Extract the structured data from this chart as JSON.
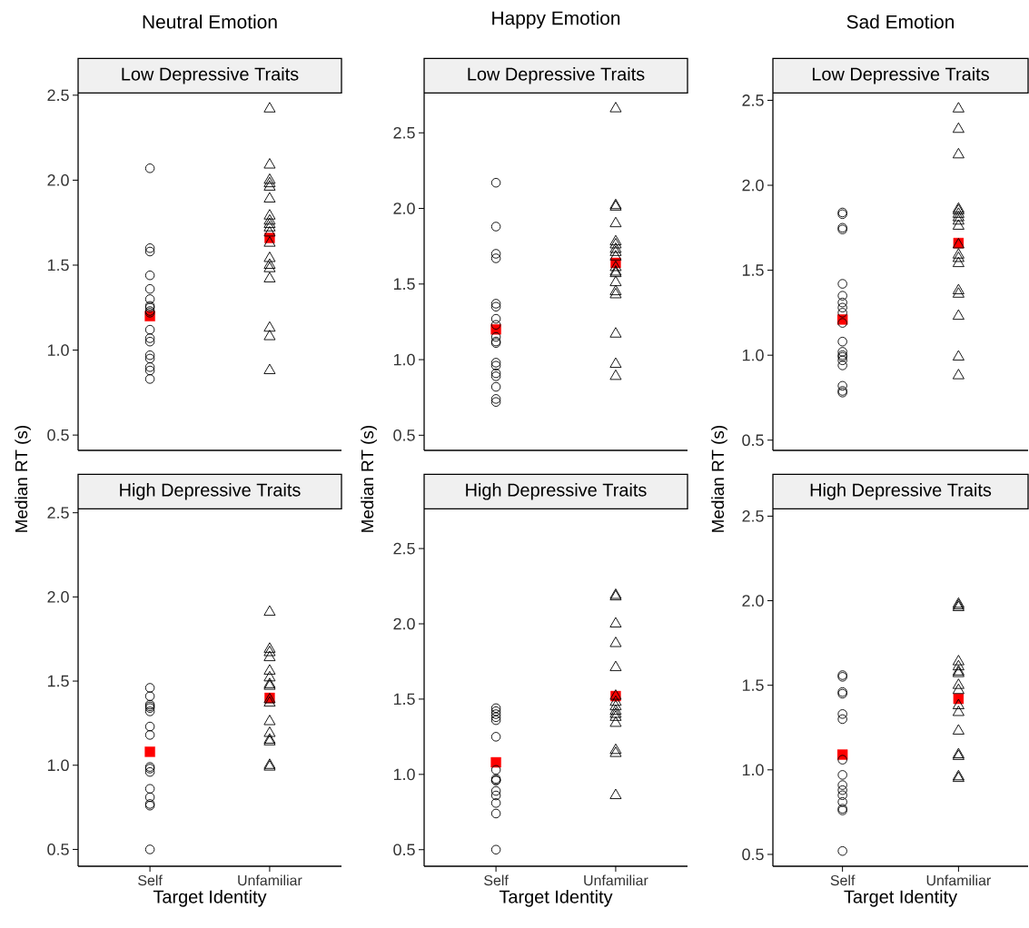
{
  "chart_data": [
    {
      "type": "scatter",
      "title": "Neutral Emotion",
      "subtitle": "Low Depressive Traits",
      "categories": [
        "Self",
        "Unfamiliar"
      ],
      "ylim": [
        0.41,
        2.51
      ],
      "yticks": [
        {
          "value": 0.5,
          "label": "0.5"
        },
        {
          "value": 1.0,
          "label": "1.0"
        },
        {
          "value": 1.5,
          "label": "1.5"
        },
        {
          "value": 2.0,
          "label": "2.0"
        },
        {
          "value": 2.5,
          "label": "2.5"
        }
      ],
      "tick_labels": "y",
      "series": [
        {
          "color": "#000000",
          "marker": "circle",
          "x": [
            "Self",
            "Self",
            "Self",
            "Self",
            "Self",
            "Self",
            "Self",
            "Self",
            "Self",
            "Self",
            "Self",
            "Self",
            "Self",
            "Self",
            "Self",
            "Self",
            "Self",
            "Self"
          ],
          "values": [
            2.07,
            1.6,
            1.58,
            1.44,
            1.36,
            1.3,
            1.26,
            1.25,
            1.23,
            1.22,
            1.12,
            1.07,
            1.05,
            0.97,
            0.95,
            0.9,
            0.88,
            0.83
          ]
        },
        {
          "color": "#000000",
          "marker": "triangle",
          "x": [
            "Unfamiliar",
            "Unfamiliar",
            "Unfamiliar",
            "Unfamiliar",
            "Unfamiliar",
            "Unfamiliar",
            "Unfamiliar",
            "Unfamiliar",
            "Unfamiliar",
            "Unfamiliar",
            "Unfamiliar",
            "Unfamiliar",
            "Unfamiliar",
            "Unfamiliar",
            "Unfamiliar",
            "Unfamiliar",
            "Unfamiliar",
            "Unfamiliar",
            "Unfamiliar"
          ],
          "values": [
            2.42,
            2.09,
            2.0,
            1.98,
            1.96,
            1.89,
            1.79,
            1.76,
            1.74,
            1.72,
            1.69,
            1.63,
            1.54,
            1.5,
            1.48,
            1.42,
            1.13,
            1.08,
            0.88
          ]
        },
        {
          "color": "#ff0000",
          "marker": "square",
          "x": [
            "Self",
            "Unfamiliar"
          ],
          "values": [
            1.2,
            1.66
          ]
        }
      ]
    },
    {
      "type": "scatter",
      "title": "Happy Emotion",
      "subtitle": "Low Depressive Traits",
      "categories": [
        "Self",
        "Unfamiliar"
      ],
      "ylim": [
        0.4,
        2.76
      ],
      "yticks": [
        {
          "value": 0.5,
          "label": "0.5"
        },
        {
          "value": 1.0,
          "label": "1.0"
        },
        {
          "value": 1.5,
          "label": "1.5"
        },
        {
          "value": 2.0,
          "label": "2.0"
        },
        {
          "value": 2.5,
          "label": "2.5"
        }
      ],
      "tick_labels": "y",
      "series": [
        {
          "color": "#000000",
          "marker": "circle",
          "x": [
            "Self",
            "Self",
            "Self",
            "Self",
            "Self",
            "Self",
            "Self",
            "Self",
            "Self",
            "Self",
            "Self",
            "Self",
            "Self",
            "Self",
            "Self",
            "Self",
            "Self",
            "Self"
          ],
          "values": [
            2.17,
            1.88,
            1.7,
            1.67,
            1.37,
            1.35,
            1.27,
            1.23,
            1.15,
            1.12,
            1.11,
            0.98,
            0.96,
            0.91,
            0.89,
            0.82,
            0.74,
            0.72
          ]
        },
        {
          "color": "#000000",
          "marker": "triangle",
          "x": [
            "Unfamiliar",
            "Unfamiliar",
            "Unfamiliar",
            "Unfamiliar",
            "Unfamiliar",
            "Unfamiliar",
            "Unfamiliar",
            "Unfamiliar",
            "Unfamiliar",
            "Unfamiliar",
            "Unfamiliar",
            "Unfamiliar",
            "Unfamiliar",
            "Unfamiliar",
            "Unfamiliar",
            "Unfamiliar",
            "Unfamiliar",
            "Unfamiliar"
          ],
          "values": [
            2.66,
            2.02,
            2.01,
            1.9,
            1.78,
            1.76,
            1.73,
            1.71,
            1.68,
            1.61,
            1.58,
            1.57,
            1.51,
            1.45,
            1.43,
            1.17,
            0.97,
            0.89
          ]
        },
        {
          "color": "#ff0000",
          "marker": "square",
          "x": [
            "Self",
            "Unfamiliar"
          ],
          "values": [
            1.2,
            1.64
          ]
        }
      ]
    },
    {
      "type": "scatter",
      "title": "Sad Emotion",
      "subtitle": "Low Depressive Traits",
      "categories": [
        "Self",
        "Unfamiliar"
      ],
      "ylim": [
        0.44,
        2.54
      ],
      "yticks": [
        {
          "value": 0.5,
          "label": "0.5"
        },
        {
          "value": 1.0,
          "label": "1.0"
        },
        {
          "value": 1.5,
          "label": "1.5"
        },
        {
          "value": 2.0,
          "label": "2.0"
        },
        {
          "value": 2.5,
          "label": "2.5"
        }
      ],
      "tick_labels": "y",
      "series": [
        {
          "color": "#000000",
          "marker": "circle",
          "x": [
            "Self",
            "Self",
            "Self",
            "Self",
            "Self",
            "Self",
            "Self",
            "Self",
            "Self",
            "Self",
            "Self",
            "Self",
            "Self",
            "Self",
            "Self",
            "Self",
            "Self",
            "Self",
            "Self"
          ],
          "values": [
            1.84,
            1.83,
            1.75,
            1.74,
            1.42,
            1.35,
            1.31,
            1.28,
            1.25,
            1.19,
            1.08,
            1.02,
            1.0,
            0.99,
            0.97,
            0.94,
            0.82,
            0.79,
            0.78
          ]
        },
        {
          "color": "#000000",
          "marker": "triangle",
          "x": [
            "Unfamiliar",
            "Unfamiliar",
            "Unfamiliar",
            "Unfamiliar",
            "Unfamiliar",
            "Unfamiliar",
            "Unfamiliar",
            "Unfamiliar",
            "Unfamiliar",
            "Unfamiliar",
            "Unfamiliar",
            "Unfamiliar",
            "Unfamiliar",
            "Unfamiliar",
            "Unfamiliar",
            "Unfamiliar",
            "Unfamiliar",
            "Unfamiliar"
          ],
          "values": [
            2.45,
            2.33,
            2.18,
            1.86,
            1.85,
            1.83,
            1.81,
            1.79,
            1.76,
            1.65,
            1.59,
            1.57,
            1.54,
            1.38,
            1.36,
            1.23,
            0.99,
            0.88
          ]
        },
        {
          "color": "#ff0000",
          "marker": "square",
          "x": [
            "Self",
            "Unfamiliar"
          ],
          "values": [
            1.21,
            1.66
          ]
        }
      ]
    },
    {
      "type": "scatter",
      "subtitle": "High Depressive Traits",
      "xlabel": "Target Identity",
      "ylabel": "Median RT (s)",
      "categories": [
        "Self",
        "Unfamiliar"
      ],
      "ylim": [
        0.4,
        2.52
      ],
      "yticks": [
        {
          "value": 0.5,
          "label": "0.5"
        },
        {
          "value": 1.0,
          "label": "1.0"
        },
        {
          "value": 1.5,
          "label": "1.5"
        },
        {
          "value": 2.0,
          "label": "2.0"
        },
        {
          "value": 2.5,
          "label": "2.5"
        }
      ],
      "series": [
        {
          "color": "#000000",
          "marker": "circle",
          "x": [
            "Self",
            "Self",
            "Self",
            "Self",
            "Self",
            "Self",
            "Self",
            "Self",
            "Self",
            "Self",
            "Self",
            "Self",
            "Self",
            "Self",
            "Self",
            "Self"
          ],
          "values": [
            1.46,
            1.41,
            1.36,
            1.35,
            1.34,
            1.32,
            1.23,
            1.18,
            0.99,
            0.98,
            0.96,
            0.86,
            0.81,
            0.77,
            0.76,
            0.5
          ]
        },
        {
          "color": "#000000",
          "marker": "triangle",
          "x": [
            "Unfamiliar",
            "Unfamiliar",
            "Unfamiliar",
            "Unfamiliar",
            "Unfamiliar",
            "Unfamiliar",
            "Unfamiliar",
            "Unfamiliar",
            "Unfamiliar",
            "Unfamiliar",
            "Unfamiliar",
            "Unfamiliar",
            "Unfamiliar",
            "Unfamiliar",
            "Unfamiliar",
            "Unfamiliar"
          ],
          "values": [
            1.91,
            1.69,
            1.67,
            1.64,
            1.56,
            1.52,
            1.48,
            1.47,
            1.39,
            1.37,
            1.26,
            1.19,
            1.15,
            1.14,
            1.0,
            0.99
          ]
        },
        {
          "color": "#ff0000",
          "marker": "square",
          "x": [
            "Self",
            "Unfamiliar"
          ],
          "values": [
            1.08,
            1.4
          ]
        }
      ]
    },
    {
      "type": "scatter",
      "subtitle": "High Depressive Traits",
      "xlabel": "Target Identity",
      "ylabel": "Median RT (s)",
      "categories": [
        "Self",
        "Unfamiliar"
      ],
      "ylim": [
        0.39,
        2.76
      ],
      "yticks": [
        {
          "value": 0.5,
          "label": "0.5"
        },
        {
          "value": 1.0,
          "label": "1.0"
        },
        {
          "value": 1.5,
          "label": "1.5"
        },
        {
          "value": 2.0,
          "label": "2.0"
        },
        {
          "value": 2.5,
          "label": "2.5"
        }
      ],
      "series": [
        {
          "color": "#000000",
          "marker": "circle",
          "x": [
            "Self",
            "Self",
            "Self",
            "Self",
            "Self",
            "Self",
            "Self",
            "Self",
            "Self",
            "Self",
            "Self",
            "Self",
            "Self",
            "Self",
            "Self"
          ],
          "values": [
            1.44,
            1.42,
            1.4,
            1.38,
            1.36,
            1.25,
            1.03,
            0.97,
            0.96,
            0.96,
            0.89,
            0.86,
            0.81,
            0.74,
            0.5
          ]
        },
        {
          "color": "#000000",
          "marker": "triangle",
          "x": [
            "Unfamiliar",
            "Unfamiliar",
            "Unfamiliar",
            "Unfamiliar",
            "Unfamiliar",
            "Unfamiliar",
            "Unfamiliar",
            "Unfamiliar",
            "Unfamiliar",
            "Unfamiliar",
            "Unfamiliar",
            "Unfamiliar",
            "Unfamiliar",
            "Unfamiliar",
            "Unfamiliar"
          ],
          "values": [
            2.19,
            2.18,
            2.0,
            1.87,
            1.71,
            1.52,
            1.48,
            1.45,
            1.42,
            1.4,
            1.38,
            1.34,
            1.16,
            1.14,
            0.86
          ]
        },
        {
          "color": "#ff0000",
          "marker": "square",
          "x": [
            "Self",
            "Unfamiliar"
          ],
          "values": [
            1.08,
            1.52
          ]
        }
      ]
    },
    {
      "type": "scatter",
      "subtitle": "High Depressive Traits",
      "xlabel": "Target Identity",
      "ylabel": "Median RT (s)",
      "categories": [
        "Self",
        "Unfamiliar"
      ],
      "ylim": [
        0.43,
        2.54
      ],
      "yticks": [
        {
          "value": 0.5,
          "label": "0.5"
        },
        {
          "value": 1.0,
          "label": "1.0"
        },
        {
          "value": 1.5,
          "label": "1.5"
        },
        {
          "value": 2.0,
          "label": "2.0"
        },
        {
          "value": 2.5,
          "label": "2.5"
        }
      ],
      "series": [
        {
          "color": "#000000",
          "marker": "circle",
          "x": [
            "Self",
            "Self",
            "Self",
            "Self",
            "Self",
            "Self",
            "Self",
            "Self",
            "Self",
            "Self",
            "Self",
            "Self",
            "Self",
            "Self",
            "Self"
          ],
          "values": [
            1.56,
            1.55,
            1.46,
            1.45,
            1.33,
            1.3,
            1.06,
            0.97,
            0.91,
            0.88,
            0.85,
            0.81,
            0.77,
            0.76,
            0.52
          ]
        },
        {
          "color": "#000000",
          "marker": "triangle",
          "x": [
            "Unfamiliar",
            "Unfamiliar",
            "Unfamiliar",
            "Unfamiliar",
            "Unfamiliar",
            "Unfamiliar",
            "Unfamiliar",
            "Unfamiliar",
            "Unfamiliar",
            "Unfamiliar",
            "Unfamiliar",
            "Unfamiliar",
            "Unfamiliar",
            "Unfamiliar",
            "Unfamiliar",
            "Unfamiliar"
          ],
          "values": [
            1.98,
            1.97,
            1.96,
            1.64,
            1.61,
            1.58,
            1.57,
            1.5,
            1.47,
            1.38,
            1.34,
            1.23,
            1.09,
            1.08,
            0.96,
            0.95
          ]
        },
        {
          "color": "#ff0000",
          "marker": "square",
          "x": [
            "Self",
            "Unfamiliar"
          ],
          "values": [
            1.09,
            1.42
          ]
        }
      ]
    }
  ]
}
